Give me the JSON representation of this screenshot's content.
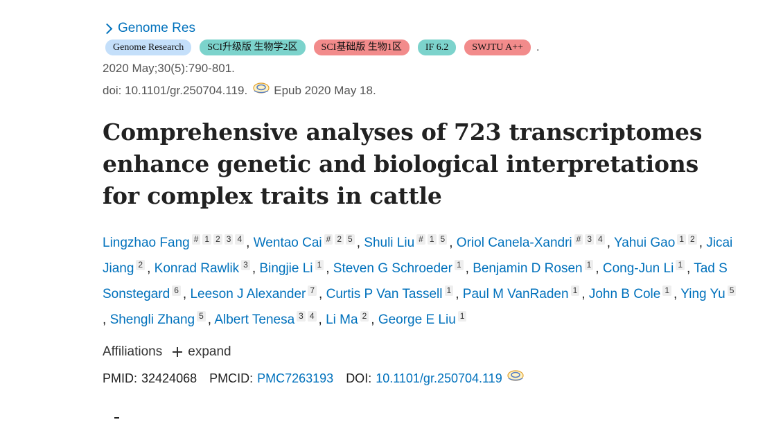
{
  "journal": {
    "name": "Genome Res"
  },
  "badges": [
    {
      "label": "Genome Research",
      "color": "#c4dffa"
    },
    {
      "label": "SCI升级版 生物学2区",
      "color": "#7cd3cc"
    },
    {
      "label": "SCI基础版 生物1区",
      "color": "#f28b8b"
    },
    {
      "label": "IF 6.2",
      "color": "#7cd3cc"
    },
    {
      "label": "SWJTU A++",
      "color": "#f28b8b"
    }
  ],
  "badge_trailer": ".",
  "citation": "2020 May;30(5):790-801.",
  "doi_line": {
    "doi": "doi: 10.1101/gr.250704.119.",
    "epub": "Epub 2020 May 18.",
    "icon": "doi-lookup-icon"
  },
  "title": "Comprehensive analyses of 723 transcriptomes enhance genetic and biological interpretations for complex traits in cattle",
  "authors": [
    {
      "name": "Lingzhao Fang",
      "sups": [
        "#",
        "1",
        "2",
        "3",
        "4"
      ]
    },
    {
      "name": "Wentao Cai",
      "sups": [
        "#",
        "2",
        "5"
      ]
    },
    {
      "name": "Shuli Liu",
      "sups": [
        "#",
        "1",
        "5"
      ]
    },
    {
      "name": "Oriol Canela-Xandri",
      "sups": [
        "#",
        "3",
        "4"
      ]
    },
    {
      "name": "Yahui Gao",
      "sups": [
        "1",
        "2"
      ]
    },
    {
      "name": "Jicai Jiang",
      "sups": [
        "2"
      ]
    },
    {
      "name": "Konrad Rawlik",
      "sups": [
        "3"
      ]
    },
    {
      "name": "Bingjie Li",
      "sups": [
        "1"
      ]
    },
    {
      "name": "Steven G Schroeder",
      "sups": [
        "1"
      ]
    },
    {
      "name": "Benjamin D Rosen",
      "sups": [
        "1"
      ]
    },
    {
      "name": "Cong-Jun Li",
      "sups": [
        "1"
      ]
    },
    {
      "name": "Tad S Sonstegard",
      "sups": [
        "6"
      ]
    },
    {
      "name": "Leeson J Alexander",
      "sups": [
        "7"
      ]
    },
    {
      "name": "Curtis P Van Tassell",
      "sups": [
        "1"
      ]
    },
    {
      "name": "Paul M VanRaden",
      "sups": [
        "1"
      ]
    },
    {
      "name": "John B Cole",
      "sups": [
        "1"
      ]
    },
    {
      "name": "Ying Yu",
      "sups": [
        "5"
      ]
    },
    {
      "name": "Shengli Zhang",
      "sups": [
        "5"
      ]
    },
    {
      "name": "Albert Tenesa",
      "sups": [
        "3",
        "4"
      ]
    },
    {
      "name": "Li Ma",
      "sups": [
        "2"
      ]
    },
    {
      "name": "George E Liu",
      "sups": [
        "1"
      ]
    }
  ],
  "affiliations": {
    "label": "Affiliations",
    "expand": "expand"
  },
  "ids": {
    "pmid_label": "PMID:",
    "pmid": "32424068",
    "pmcid_label": "PMCID:",
    "pmcid": "PMC7263193",
    "doi_label": "DOI:",
    "doi": "10.1101/gr.250704.119"
  }
}
